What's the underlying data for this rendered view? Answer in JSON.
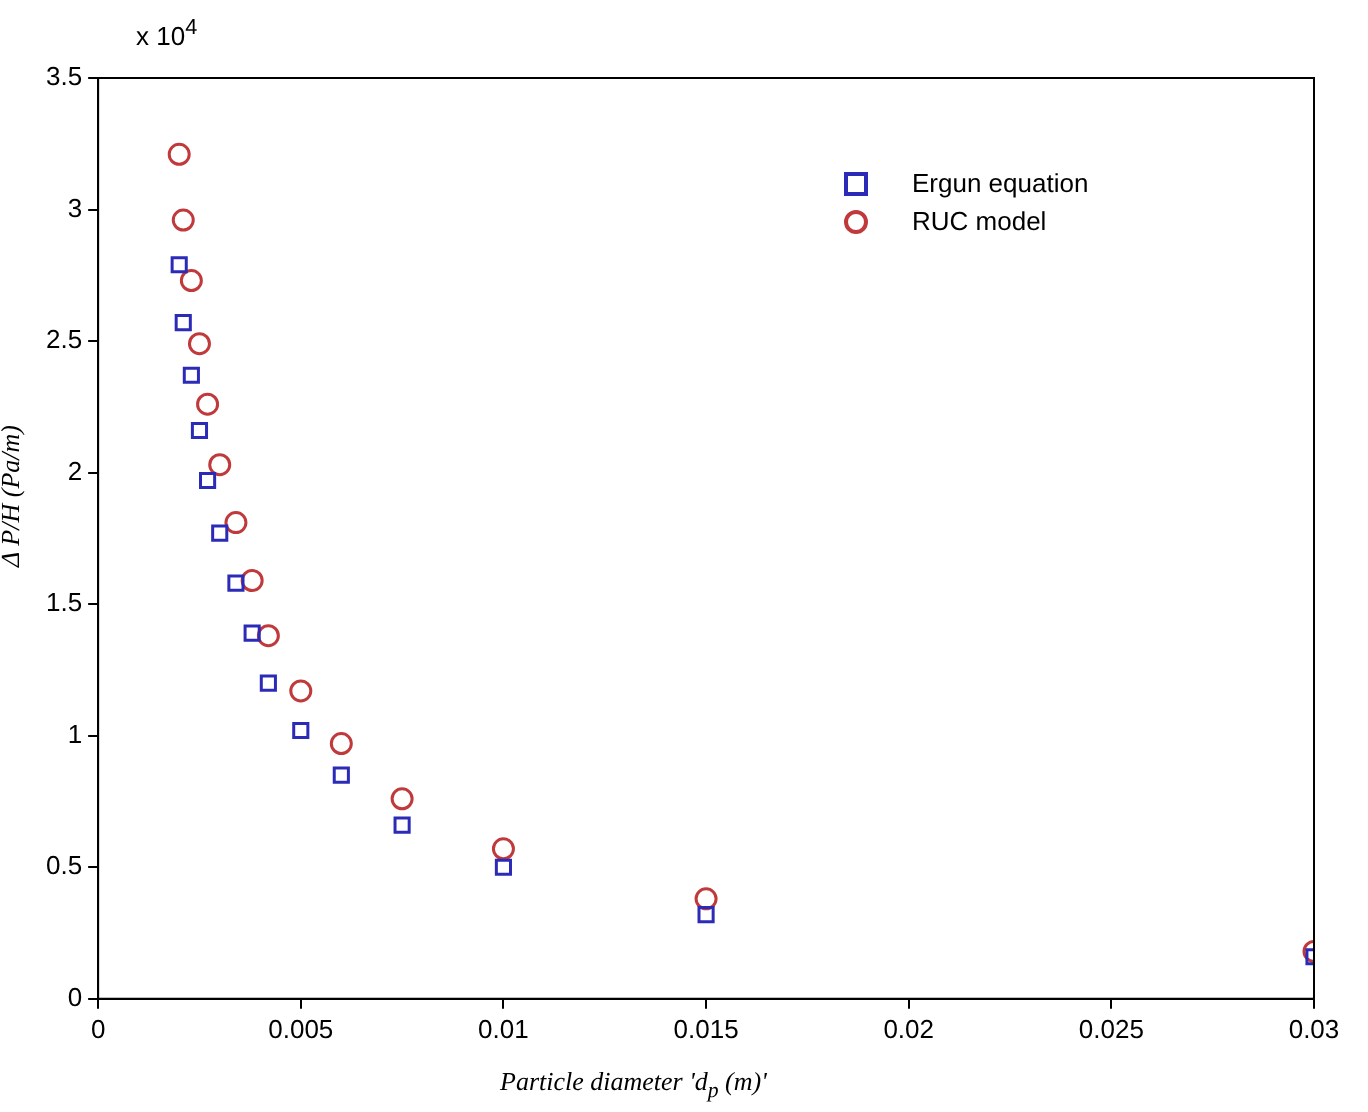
{
  "chart_data": {
    "type": "scatter",
    "xlabel": "Particle diameter 'd$_{p}$ (m)'",
    "ylabel": "Δ P/H (Pa/m)",
    "x": [
      0.002,
      0.0021,
      0.0023,
      0.0025,
      0.0027,
      0.003,
      0.0034,
      0.0038,
      0.0042,
      0.005,
      0.006,
      0.0075,
      0.01,
      0.015,
      0.03
    ],
    "series": [
      {
        "name": "Ergun equation",
        "color": "#2b2bb8",
        "marker": "square",
        "values": [
          2.79,
          2.57,
          2.37,
          2.16,
          1.97,
          1.77,
          1.58,
          1.39,
          1.2,
          1.02,
          0.85,
          0.66,
          0.5,
          0.32,
          0.16
        ]
      },
      {
        "name": "RUC model",
        "color": "#c0393b",
        "marker": "circle",
        "values": [
          3.21,
          2.96,
          2.73,
          2.49,
          2.26,
          2.03,
          1.81,
          1.59,
          1.38,
          1.17,
          0.97,
          0.76,
          0.57,
          0.38,
          0.18
        ]
      }
    ],
    "xlim": [
      0,
      0.03
    ],
    "xticks": [
      0,
      0.005,
      0.01,
      0.015,
      0.02,
      0.025,
      0.03
    ],
    "ylim": [
      0,
      3.5
    ],
    "yticks": [
      0,
      0.5,
      1,
      1.5,
      2,
      2.5,
      3,
      3.5
    ],
    "annotations": [
      "x 10$^{4}$"
    ],
    "legend": "top right",
    "grid": false
  }
}
